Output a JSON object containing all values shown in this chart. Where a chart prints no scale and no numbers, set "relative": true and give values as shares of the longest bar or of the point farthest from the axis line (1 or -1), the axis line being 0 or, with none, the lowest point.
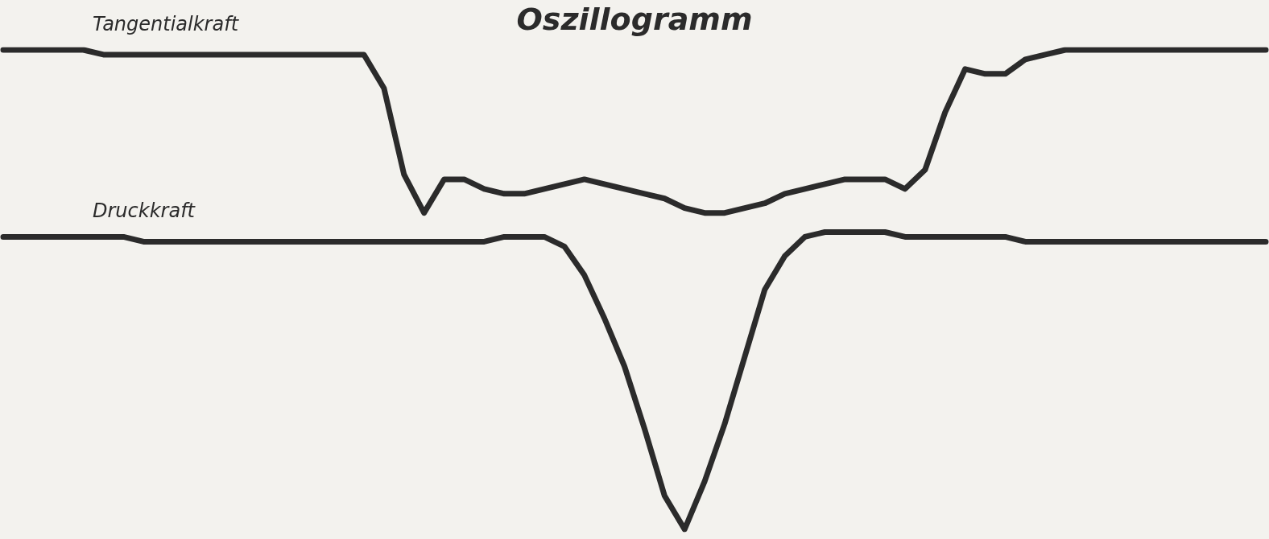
{
  "chart_data": {
    "type": "line",
    "title": "Oszillogramm",
    "relative": true,
    "legend": false,
    "marker": "none",
    "line_style": "solid",
    "categories": [
      null,
      null,
      null,
      null,
      null,
      null,
      null,
      null,
      null,
      null,
      null,
      null,
      null,
      null,
      null,
      null,
      null,
      null,
      null,
      null,
      null,
      null,
      null,
      null,
      null,
      null,
      null,
      null,
      null,
      null,
      null,
      null,
      null,
      null,
      null,
      null,
      null,
      null,
      null,
      null,
      null,
      null,
      null,
      null,
      null,
      null,
      null,
      null,
      null,
      null,
      null,
      null,
      null,
      null,
      null,
      null,
      null,
      null,
      null,
      null,
      null,
      null,
      null,
      null
    ],
    "series": [
      {
        "name": "Tangentialkraft",
        "color": "#2b2b2b",
        "values": [
          1,
          1,
          1,
          1,
          1,
          0.99,
          0.99,
          0.99,
          0.99,
          0.99,
          0.99,
          0.99,
          0.99,
          0.99,
          0.99,
          0.99,
          0.99,
          0.99,
          0.99,
          0.92,
          0.74,
          0.66,
          0.73,
          0.73,
          0.71,
          0.7,
          0.7,
          0.71,
          0.72,
          0.73,
          0.72,
          0.71,
          0.7,
          0.69,
          0.67,
          0.66,
          0.66,
          0.67,
          0.68,
          0.7,
          0.71,
          0.72,
          0.73,
          0.73,
          0.73,
          0.71,
          0.75,
          0.87,
          0.96,
          0.95,
          0.95,
          0.98,
          0.99,
          1,
          1,
          1,
          1,
          1,
          1,
          1,
          1,
          1,
          1,
          1
        ]
      },
      {
        "name": "Druckkraft",
        "color": "#2b2b2b",
        "values": [
          0.61,
          0.61,
          0.61,
          0.61,
          0.61,
          0.61,
          0.61,
          0.6,
          0.6,
          0.6,
          0.6,
          0.6,
          0.6,
          0.6,
          0.6,
          0.6,
          0.6,
          0.6,
          0.6,
          0.6,
          0.6,
          0.6,
          0.6,
          0.6,
          0.6,
          0.61,
          0.61,
          0.61,
          0.59,
          0.53,
          0.44,
          0.34,
          0.21,
          0.07,
          0,
          0.1,
          0.22,
          0.36,
          0.5,
          0.57,
          0.61,
          0.62,
          0.62,
          0.62,
          0.62,
          0.61,
          0.61,
          0.61,
          0.61,
          0.61,
          0.61,
          0.6,
          0.6,
          0.6,
          0.6,
          0.6,
          0.6,
          0.6,
          0.6,
          0.6,
          0.6,
          0.6,
          0.6,
          0.6
        ]
      }
    ]
  }
}
